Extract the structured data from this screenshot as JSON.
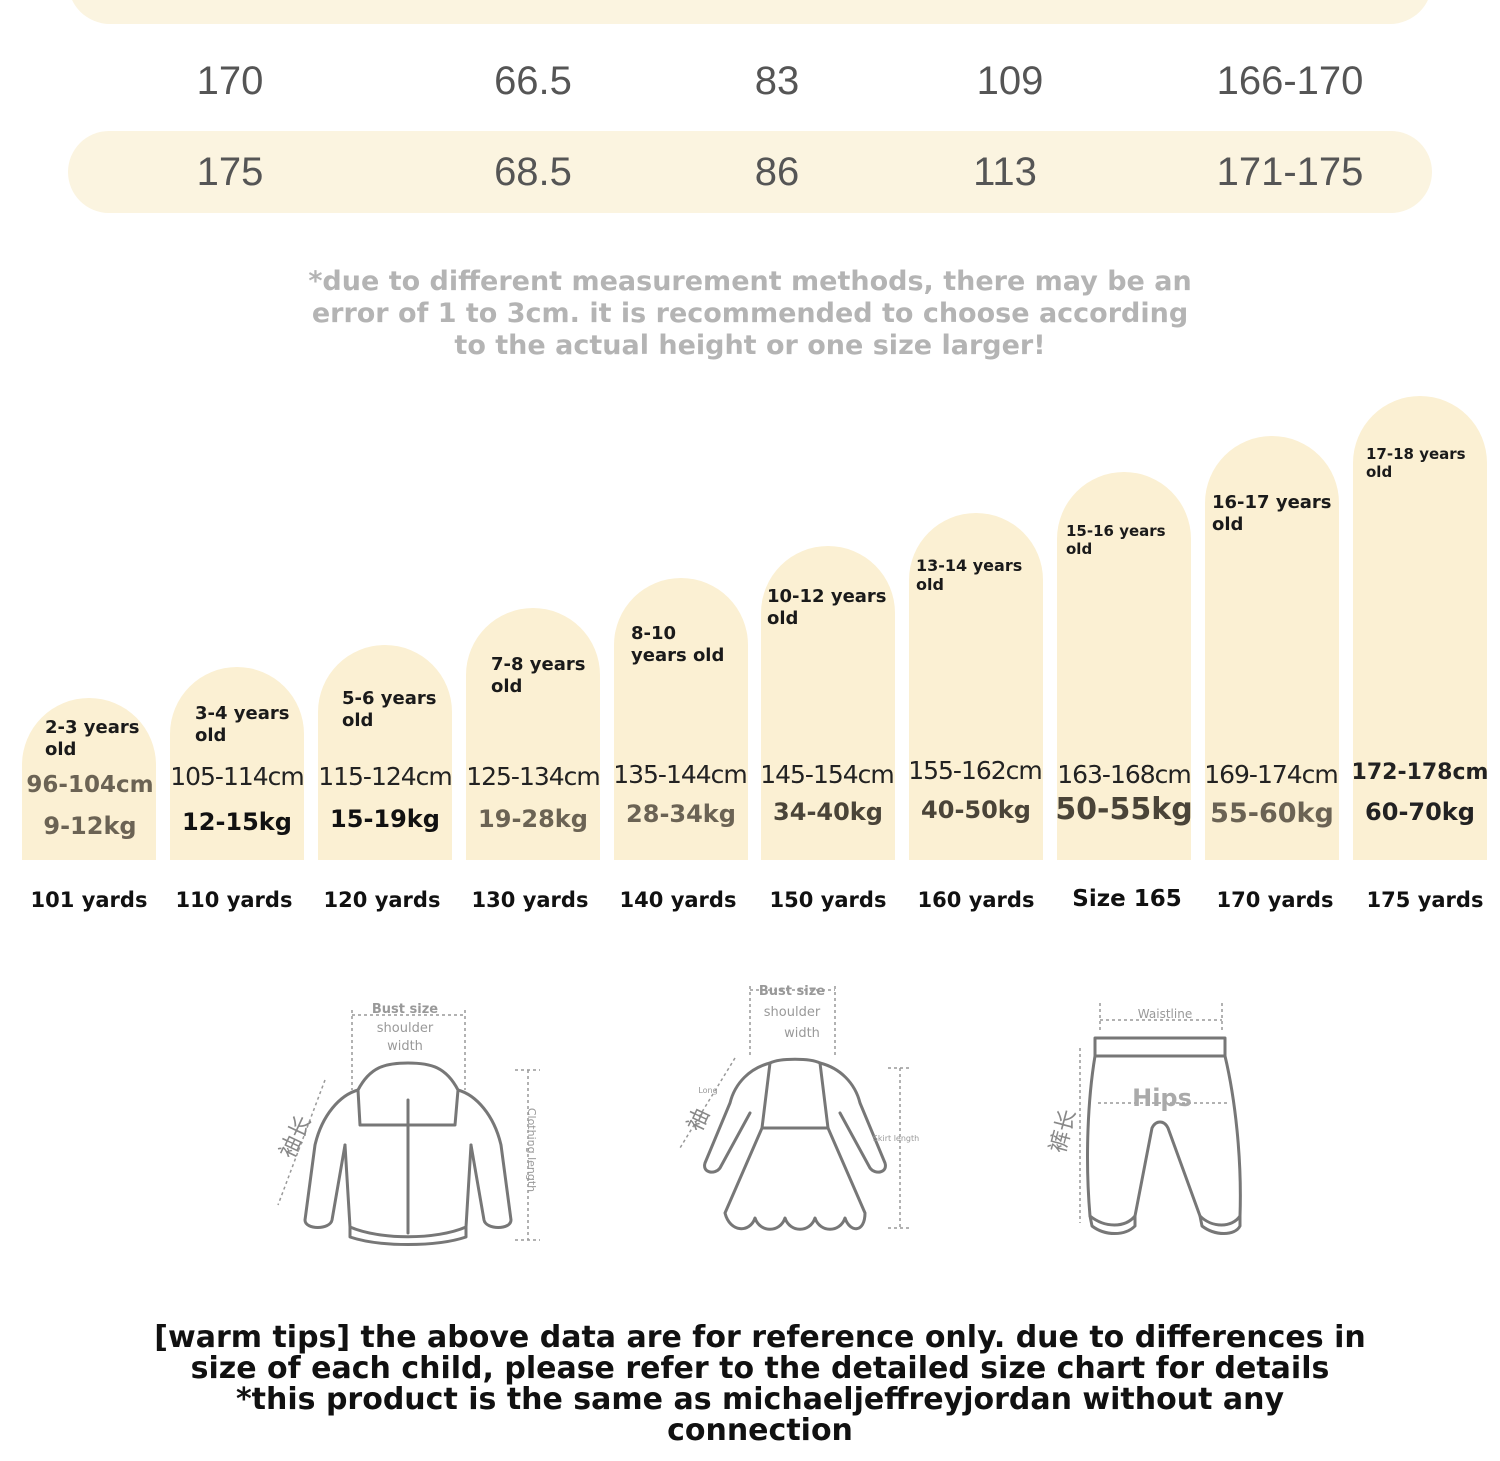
{
  "table": {
    "rows": [
      [
        "170",
        "66.5",
        "83",
        "109",
        "166-170"
      ],
      [
        "175",
        "68.5",
        "86",
        "113",
        "171-175"
      ]
    ]
  },
  "note": "*due to different measurement methods, there may be an error of 1 to 3cm. it is recommended to choose according to the actual height or one size larger!",
  "sizes": [
    {
      "age": "2-3 years old",
      "height": "96-104cm",
      "weight": "9-12kg",
      "label": "101 yards"
    },
    {
      "age": "3-4 years old",
      "height": "105-114cm",
      "weight": "12-15kg",
      "label": "110 yards"
    },
    {
      "age": "5-6 years old",
      "height": "115-124cm",
      "weight": "15-19kg",
      "label": "120 yards"
    },
    {
      "age": "7-8 years old",
      "height": "125-134cm",
      "weight": "19-28kg",
      "label": "130 yards"
    },
    {
      "age": "8-10 years old",
      "height": "135-144cm",
      "weight": "28-34kg",
      "label": "140 yards"
    },
    {
      "age": "10-12 years old",
      "height": "145-154cm",
      "weight": "34-40kg",
      "label": "150 yards"
    },
    {
      "age": "13-14 years old",
      "height": "155-162cm",
      "weight": "40-50kg",
      "label": "160 yards"
    },
    {
      "age": "15-16 years old",
      "height": "163-168cm",
      "weight": "50-55kg",
      "label": "Size 165"
    },
    {
      "age": "16-17 years old",
      "height": "169-174cm",
      "weight": "55-60kg",
      "label": "170 yards"
    },
    {
      "age": "17-18 years old",
      "height": "172-178cm",
      "weight": "60-70kg",
      "label": "175 yards"
    }
  ],
  "diagrams": {
    "jacket": {
      "bust": "Bust size",
      "shoulder": "shoulder",
      "width": "width",
      "sleeve": "袖长",
      "length": "Clothing length"
    },
    "dress": {
      "bust": "Bust size",
      "shoulder": "shoulder",
      "width": "width",
      "long": "Long",
      "sleeve": "袖",
      "skirt": "Skirt length"
    },
    "pants": {
      "waist": "Waistline",
      "hips": "Hips",
      "pant": "裤长"
    }
  },
  "tips": "[warm tips] the above data are for reference only. due to differences in size of each child, please refer to the detailed size chart for details *this product is the same as michaeljeffreyjordan without any connection",
  "colors": {
    "cream": "#fbf0d3",
    "row": "#fbf4e0"
  }
}
